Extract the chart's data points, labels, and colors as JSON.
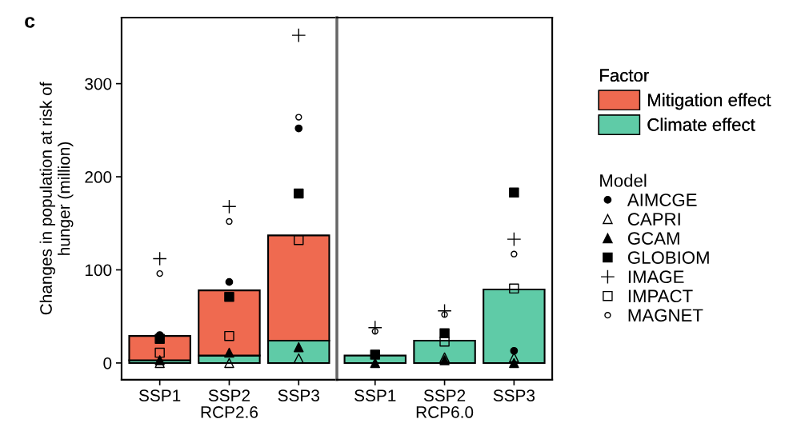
{
  "chart_data": [
    {
      "type": "bar",
      "stacked": true,
      "annotations": [
        "c",
        "Model"
      ],
      "legend_title": "Factor",
      "xlabel": "RCP2.6",
      "ylabel": "Changes in population at risk of\nhunger (million)",
      "categories": [
        "SSP1",
        "SSP2",
        "SSP3"
      ],
      "ylim": [
        -18,
        371
      ],
      "yticks": [
        0,
        100,
        200,
        300
      ],
      "tick_labels": "xy",
      "legend": "right",
      "series": [
        {
          "name": "Climate effect",
          "color": "#5fcba7",
          "values": [
            3,
            8,
            24
          ]
        },
        {
          "name": "Mitigation effect",
          "color": "#ef6a50",
          "values": [
            26,
            70,
            113
          ]
        },
        {
          "name": "AIMCGE",
          "type": "scatter",
          "marker": "circle",
          "color": "#000000",
          "values": [
            30,
            87,
            252
          ]
        },
        {
          "name": "CAPRI",
          "type": "scatter",
          "marker": "triangle-open",
          "color": "#000000",
          "values": [
            0,
            0,
            5
          ]
        },
        {
          "name": "GCAM",
          "type": "scatter",
          "marker": "triangle",
          "color": "#000000",
          "values": [
            3,
            11,
            17
          ]
        },
        {
          "name": "GLOBIOM",
          "type": "scatter",
          "marker": "square",
          "color": "#000000",
          "values": [
            26,
            71,
            182
          ]
        },
        {
          "name": "IMAGE",
          "type": "scatter",
          "marker": "cross",
          "color": "#000000",
          "values": [
            112,
            168,
            352
          ]
        },
        {
          "name": "IMPACT",
          "type": "scatter",
          "marker": "square-open",
          "color": "#000000",
          "values": [
            11,
            29,
            132
          ]
        },
        {
          "name": "MAGNET",
          "type": "scatter",
          "marker": "circle-open",
          "color": "#000000",
          "values": [
            96,
            152,
            264
          ]
        }
      ]
    },
    {
      "type": "bar",
      "stacked": true,
      "xlabel": "RCP6.0",
      "categories": [
        "SSP1",
        "SSP2",
        "SSP3"
      ],
      "ylim": [
        -18,
        371
      ],
      "yticks": [
        0,
        100,
        200,
        300
      ],
      "tick_labels": "x",
      "series": [
        {
          "color": "#5fcba7",
          "values": [
            8,
            24,
            79
          ]
        },
        {
          "type": "scatter",
          "marker": "circle",
          "color": "#000000",
          "values": [
            null,
            null,
            13
          ]
        },
        {
          "type": "scatter",
          "marker": "triangle-open",
          "color": "#000000",
          "values": [
            null,
            6,
            6
          ]
        },
        {
          "type": "scatter",
          "marker": "triangle",
          "color": "#000000",
          "values": [
            0,
            3,
            0
          ]
        },
        {
          "type": "scatter",
          "marker": "square",
          "color": "#000000",
          "values": [
            9,
            32,
            183
          ]
        },
        {
          "type": "scatter",
          "marker": "cross",
          "color": "#000000",
          "values": [
            38,
            56,
            133
          ]
        },
        {
          "type": "scatter",
          "marker": "square-open",
          "color": "#000000",
          "values": [
            null,
            23,
            80
          ]
        },
        {
          "type": "scatter",
          "marker": "circle-open",
          "color": "#000000",
          "values": [
            34,
            52,
            117
          ]
        }
      ]
    }
  ]
}
